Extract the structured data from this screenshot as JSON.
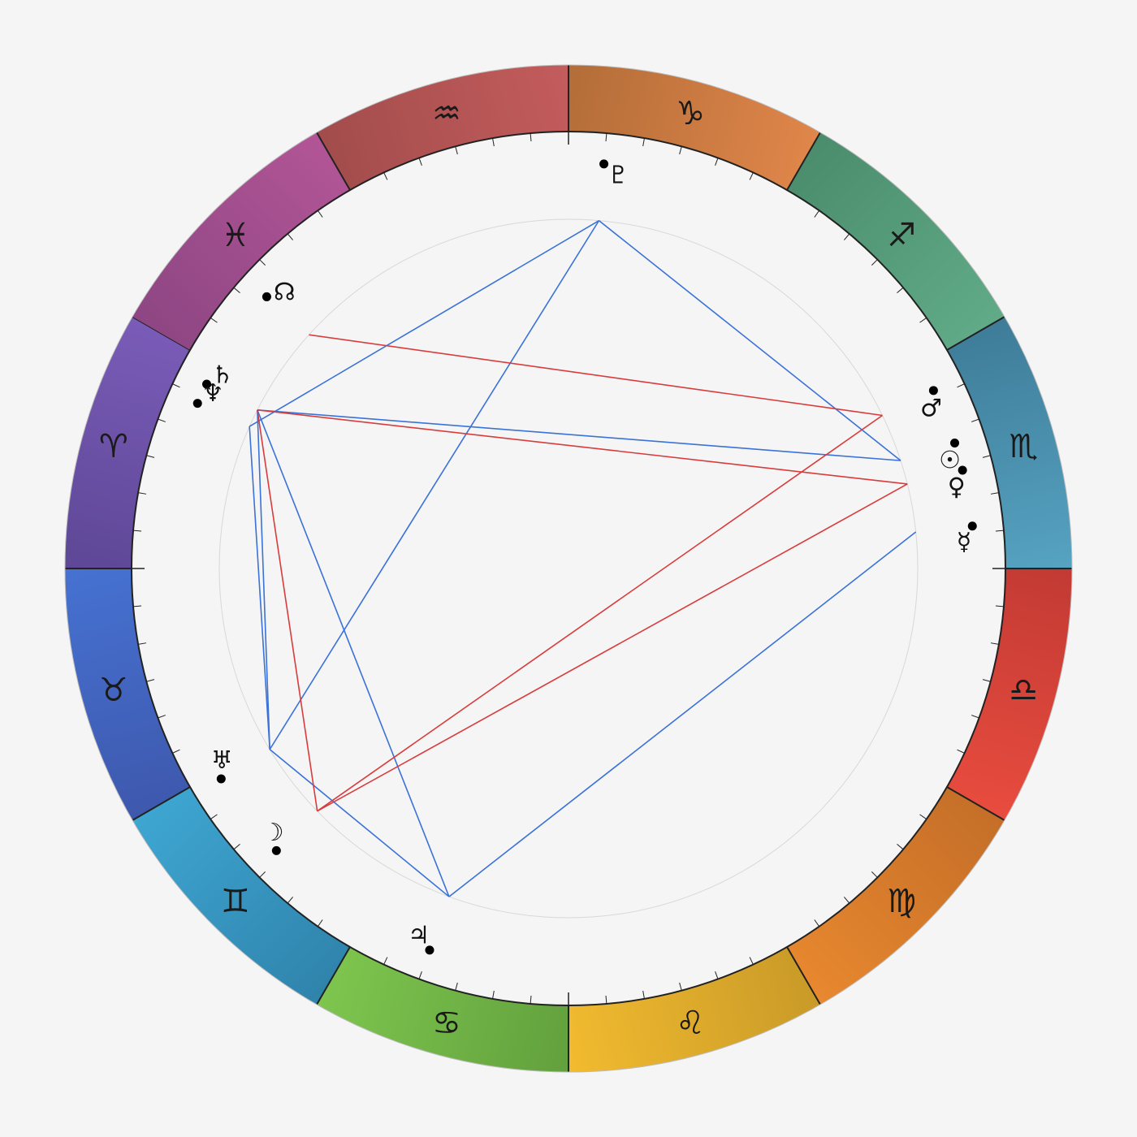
{
  "colors": {
    "background": "#f5f5f5",
    "aspect_harmonious": "#3a72d8",
    "aspect_tense": "#d83c3c",
    "inner_circle": "#d8d8d8",
    "outline": "#222222"
  },
  "signs": [
    {
      "name": "Aries",
      "symbol": "♈",
      "color_a": "#7a5cb8",
      "color_b": "#5e4796"
    },
    {
      "name": "Taurus",
      "symbol": "♉",
      "color_a": "#4672d2",
      "color_b": "#3e58ad"
    },
    {
      "name": "Gemini",
      "symbol": "♊",
      "color_a": "#3ea6d2",
      "color_b": "#2f83ab"
    },
    {
      "name": "Cancer",
      "symbol": "♋",
      "color_a": "#7ec64f",
      "color_b": "#62a03d"
    },
    {
      "name": "Leo",
      "symbol": "♌",
      "color_a": "#f2bb2f",
      "color_b": "#c99a28"
    },
    {
      "name": "Virgo",
      "symbol": "♍",
      "color_a": "#e8882f",
      "color_b": "#c46e28"
    },
    {
      "name": "Libra",
      "symbol": "♎",
      "color_a": "#e84c3e",
      "color_b": "#c23a34"
    },
    {
      "name": "Scorpio",
      "symbol": "♏",
      "color_a": "#56a3c2",
      "color_b": "#3e7c98"
    },
    {
      "name": "Sagittarius",
      "symbol": "♐",
      "color_a": "#61ab88",
      "color_b": "#4a8c6c"
    },
    {
      "name": "Capricorn",
      "symbol": "♑",
      "color_a": "#e0864a",
      "color_b": "#b36d38"
    },
    {
      "name": "Aquarius",
      "symbol": "♒",
      "color_a": "#c45c5c",
      "color_b": "#a24c4c"
    },
    {
      "name": "Pisces",
      "symbol": "♓",
      "color_a": "#b25596",
      "color_b": "#8d4683"
    }
  ],
  "planets": [
    {
      "name": "Uranus",
      "symbol": "♅",
      "longitude": 61.2
    },
    {
      "name": "Moon",
      "symbol": "☽",
      "longitude": 74.0
    },
    {
      "name": "Jupiter",
      "symbol": "♃",
      "longitude": 100.0
    },
    {
      "name": "Mercury",
      "symbol": "☿",
      "longitude": 216.0
    },
    {
      "name": "Venus",
      "symbol": "♀",
      "longitude": 224.0
    },
    {
      "name": "Sun",
      "symbol": "☉",
      "longitude": 228.0
    },
    {
      "name": "Mars",
      "symbol": "♂",
      "longitude": 236.0
    },
    {
      "name": "Pluto",
      "symbol": "♇",
      "longitude": 295.0
    },
    {
      "name": "North Node",
      "symbol": "☊",
      "longitude": 348.0
    },
    {
      "name": "Saturn",
      "symbol": "♄",
      "longitude": 3.0
    },
    {
      "name": "Neptune",
      "symbol": "♆",
      "longitude": 6.0
    }
  ],
  "aspects": [
    {
      "from": "Uranus",
      "to": "Neptune",
      "type": "harmonious"
    },
    {
      "from": "Uranus",
      "to": "Saturn",
      "type": "harmonious"
    },
    {
      "from": "Uranus",
      "to": "Jupiter",
      "type": "harmonious"
    },
    {
      "from": "Uranus",
      "to": "Pluto",
      "type": "harmonious"
    },
    {
      "from": "Jupiter",
      "to": "Saturn",
      "type": "harmonious"
    },
    {
      "from": "Jupiter",
      "to": "Mercury",
      "type": "harmonious"
    },
    {
      "from": "Saturn",
      "to": "Sun",
      "type": "harmonious"
    },
    {
      "from": "Neptune",
      "to": "Pluto",
      "type": "harmonious"
    },
    {
      "from": "Pluto",
      "to": "Sun",
      "type": "harmonious"
    },
    {
      "from": "Moon",
      "to": "Saturn",
      "type": "tense"
    },
    {
      "from": "Moon",
      "to": "Mars",
      "type": "tense"
    },
    {
      "from": "Moon",
      "to": "Venus",
      "type": "tense"
    },
    {
      "from": "Saturn",
      "to": "Venus",
      "type": "tense"
    },
    {
      "from": "North Node",
      "to": "Mars",
      "type": "tense"
    }
  ]
}
